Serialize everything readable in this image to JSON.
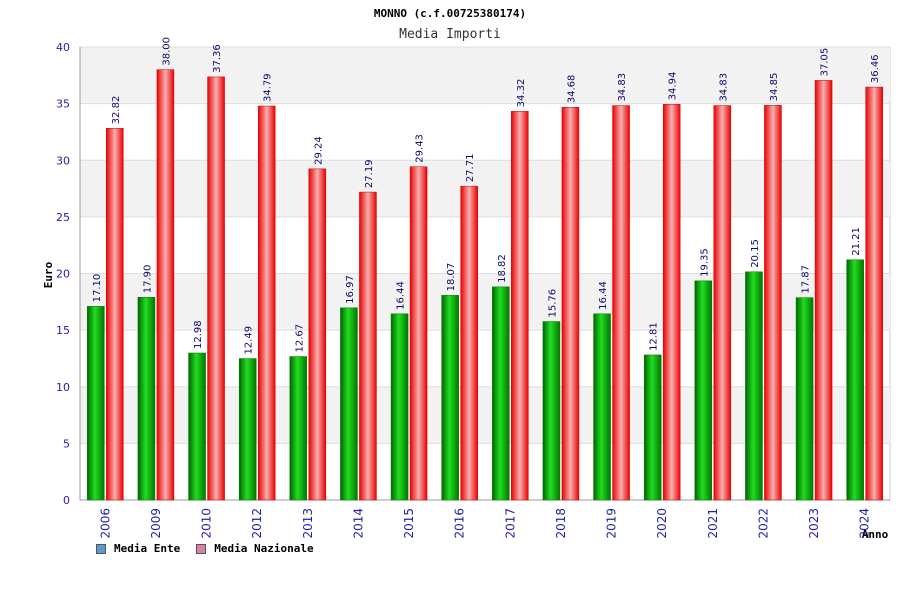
{
  "chart_data": {
    "type": "bar",
    "title": "MONNO (c.f.00725380174)",
    "subtitle": "Media Importi",
    "xlabel": "Anno",
    "ylabel": "Euro",
    "ylim": [
      0,
      40
    ],
    "yticks": [
      0,
      5,
      10,
      15,
      20,
      25,
      30,
      35,
      40
    ],
    "grid": true,
    "categories": [
      "2006",
      "2009",
      "2010",
      "2012",
      "2013",
      "2014",
      "2015",
      "2016",
      "2017",
      "2018",
      "2019",
      "2020",
      "2021",
      "2022",
      "2023",
      "2024"
    ],
    "series": [
      {
        "name": "Media Ente",
        "color": "#00b000",
        "values": [
          17.1,
          17.9,
          12.98,
          12.49,
          12.67,
          16.97,
          16.44,
          18.07,
          18.82,
          15.76,
          16.44,
          12.81,
          19.35,
          20.15,
          17.87,
          21.21
        ],
        "labels": [
          "17.10",
          "17.90",
          "12.98",
          "12.49",
          "12.67",
          "16.97",
          "16.44",
          "18.07",
          "18.82",
          "15.76",
          "16.44",
          "12.81",
          "19.35",
          "20.15",
          "17.87",
          "21.21"
        ]
      },
      {
        "name": "Media Nazionale",
        "color": "#ee1111",
        "values": [
          32.82,
          38.0,
          37.36,
          34.79,
          29.24,
          27.19,
          29.43,
          27.71,
          34.32,
          34.68,
          34.83,
          34.94,
          34.83,
          34.85,
          37.05,
          36.46
        ],
        "labels": [
          "32.82",
          "38.00",
          "37.36",
          "34.79",
          "29.24",
          "27.19",
          "29.43",
          "27.71",
          "34.32",
          "34.68",
          "34.83",
          "34.94",
          "34.83",
          "34.85",
          "37.05",
          "36.46"
        ]
      }
    ],
    "legend": {
      "position": "bottom-left",
      "items": [
        {
          "label": "Media Ente",
          "color": "#5b9bd5"
        },
        {
          "label": "Media Nazionale",
          "color": "#e080a0"
        }
      ]
    }
  }
}
